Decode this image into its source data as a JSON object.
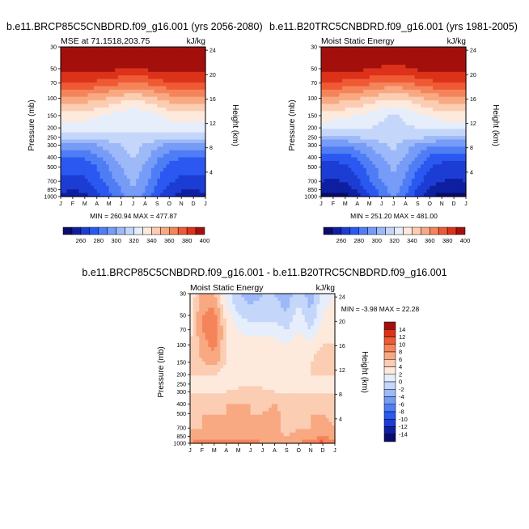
{
  "figure": {
    "colormap": {
      "levels": [
        -14,
        -12,
        -10,
        -8,
        -6,
        -4,
        -2,
        0,
        2,
        4,
        6,
        8,
        10,
        12,
        14
      ],
      "colors": [
        "#0b0b6b",
        "#0f1fa0",
        "#1c3dd4",
        "#2b58f0",
        "#4f7df5",
        "#779cf7",
        "#9db9f8",
        "#c4d6fa",
        "#e6eefb",
        "#fdeadd",
        "#fbcdb3",
        "#f8a982",
        "#f5845a",
        "#ef5a34",
        "#dc321a",
        "#a3100c"
      ]
    },
    "panels": [
      {
        "title": "b.e11.BRCP85C5CNBDRD.f09_g16.001 (yrs 2056-2080)",
        "left_label": "MSE at 71.1518,203.75",
        "units": "kJ/kg",
        "min_max": "MIN = 260.94 MAX = 477.87",
        "colorbar_labels": [
          "260",
          "280",
          "300",
          "320",
          "340",
          "360",
          "380",
          "400"
        ]
      },
      {
        "title": "b.e11.B20TRC5CNBDRD.f09_g16.001 (yrs 1981-2005)",
        "left_label": "Moist Static Energy",
        "units": "kJ/kg",
        "min_max": "MIN = 251.20 MAX = 481.00",
        "colorbar_labels": [
          "260",
          "280",
          "300",
          "320",
          "340",
          "360",
          "380",
          "400"
        ]
      },
      {
        "title": "b.e11.BRCP85C5CNBDRD.f09_g16.001 - b.e11.B20TRC5CNBDRD.f09_g16.001",
        "left_label": "Moist Static Energy",
        "units": "kJ/kg",
        "min_max": "MIN =  -3.98 MAX =  22.28",
        "colorbar_labels": [
          "14",
          "12",
          "10",
          "8",
          "6",
          "4",
          "2",
          "0",
          "-2",
          "-4",
          "-6",
          "-8",
          "-10",
          "-12",
          "-14"
        ]
      }
    ],
    "axes": {
      "ylabel": "Pressure (mb)",
      "ylabel_right": "Height (km)",
      "months": [
        "J",
        "F",
        "M",
        "A",
        "M",
        "J",
        "J",
        "A",
        "S",
        "O",
        "N",
        "D",
        "J"
      ],
      "pressure_ticks": [
        "30",
        "50",
        "70",
        "100",
        "150",
        "200",
        "250",
        "300",
        "400",
        "500",
        "700",
        "850",
        "1000"
      ],
      "height_ticks": [
        "24",
        "20",
        "16",
        "12",
        "8",
        "4"
      ]
    }
  },
  "chart_data": [
    {
      "type": "contour",
      "title": "b.e11.BRCP85C5CNBDRD.f09_g16.001 (yrs 2056-2080)",
      "subtitle": "MSE at 71.1518,203.75",
      "units": "kJ/kg",
      "xlabel": "",
      "ylabel": "Pressure (mb)",
      "ylabel_right": "Height (km)",
      "x": [
        "J",
        "F",
        "M",
        "A",
        "M",
        "J",
        "J",
        "A",
        "S",
        "O",
        "N",
        "D",
        "J"
      ],
      "pressure_levels": [
        30,
        50,
        70,
        100,
        150,
        200,
        250,
        300,
        400,
        500,
        700,
        850,
        1000
      ],
      "height_km": [
        24,
        20,
        16,
        12,
        8,
        4
      ],
      "contour_levels": [
        260,
        270,
        280,
        290,
        300,
        310,
        320,
        330,
        340,
        350,
        360,
        370,
        380,
        390,
        400
      ],
      "z": [
        [
          410,
          410,
          410,
          410,
          410,
          410,
          410,
          410,
          410,
          410,
          410,
          410,
          410
        ],
        [
          405,
          405,
          405,
          405,
          403,
          401,
          400,
          401,
          404,
          405,
          405,
          405,
          405
        ],
        [
          390,
          390,
          389,
          387,
          384,
          381,
          379,
          381,
          385,
          389,
          390,
          390,
          390
        ],
        [
          368,
          368,
          366,
          363,
          359,
          355,
          352,
          355,
          360,
          365,
          368,
          368,
          368
        ],
        [
          346,
          346,
          344,
          341,
          337,
          333,
          331,
          333,
          338,
          343,
          346,
          346,
          346
        ],
        [
          335,
          335,
          334,
          333,
          332,
          331,
          330,
          331,
          332,
          334,
          335,
          335,
          335
        ],
        [
          322,
          322,
          322,
          324,
          326,
          328,
          330,
          328,
          326,
          323,
          322,
          322,
          322
        ],
        [
          305,
          305,
          305,
          310,
          315,
          320,
          326,
          318,
          312,
          307,
          305,
          305,
          305
        ],
        [
          290,
          290,
          291,
          297,
          307,
          315,
          320,
          314,
          302,
          294,
          290,
          290,
          290
        ],
        [
          283,
          283,
          284,
          290,
          300,
          310,
          316,
          308,
          296,
          287,
          283,
          283,
          283
        ],
        [
          278,
          277,
          278,
          285,
          295,
          305,
          312,
          304,
          290,
          281,
          278,
          277,
          278
        ],
        [
          272,
          271,
          272,
          280,
          290,
          300,
          310,
          300,
          286,
          276,
          271,
          271,
          272
        ],
        [
          266,
          265,
          266,
          275,
          286,
          298,
          306,
          296,
          282,
          271,
          266,
          265,
          266
        ]
      ],
      "min": 260.94,
      "max": 477.87
    },
    {
      "type": "contour",
      "title": "b.e11.B20TRC5CNBDRD.f09_g16.001 (yrs 1981-2005)",
      "subtitle": "Moist Static Energy",
      "units": "kJ/kg",
      "xlabel": "",
      "ylabel": "Pressure (mb)",
      "ylabel_right": "Height (km)",
      "x": [
        "J",
        "F",
        "M",
        "A",
        "M",
        "J",
        "J",
        "A",
        "S",
        "O",
        "N",
        "D",
        "J"
      ],
      "pressure_levels": [
        30,
        50,
        70,
        100,
        150,
        200,
        250,
        300,
        400,
        500,
        700,
        850,
        1000
      ],
      "height_km": [
        24,
        20,
        16,
        12,
        8,
        4
      ],
      "contour_levels": [
        260,
        270,
        280,
        290,
        300,
        310,
        320,
        330,
        340,
        350,
        360,
        370,
        380,
        390,
        400
      ],
      "z": [
        [
          410,
          410,
          410,
          410,
          410,
          410,
          410,
          410,
          410,
          410,
          410,
          410,
          410
        ],
        [
          404,
          404,
          404,
          403,
          401,
          399,
          398,
          399,
          402,
          404,
          404,
          404,
          404
        ],
        [
          388,
          388,
          387,
          385,
          382,
          379,
          377,
          379,
          383,
          387,
          388,
          388,
          388
        ],
        [
          366,
          366,
          364,
          361,
          357,
          353,
          350,
          353,
          358,
          363,
          366,
          366,
          366
        ],
        [
          344,
          344,
          342,
          339,
          335,
          331,
          329,
          331,
          336,
          341,
          344,
          344,
          344
        ],
        [
          333,
          333,
          332,
          331,
          330,
          329,
          328,
          329,
          330,
          332,
          333,
          333,
          333
        ],
        [
          318,
          318,
          318,
          320,
          322,
          325,
          327,
          324,
          322,
          319,
          318,
          318,
          318
        ],
        [
          300,
          300,
          300,
          305,
          311,
          317,
          323,
          314,
          308,
          303,
          300,
          300,
          300
        ],
        [
          284,
          284,
          285,
          291,
          301,
          310,
          316,
          309,
          297,
          288,
          284,
          284,
          284
        ],
        [
          276,
          276,
          277,
          284,
          294,
          305,
          312,
          303,
          291,
          281,
          276,
          276,
          276
        ],
        [
          270,
          269,
          270,
          278,
          289,
          300,
          308,
          298,
          284,
          274,
          270,
          269,
          270
        ],
        [
          263,
          262,
          263,
          272,
          283,
          295,
          305,
          294,
          279,
          268,
          263,
          262,
          263
        ],
        [
          256,
          255,
          256,
          266,
          278,
          292,
          302,
          290,
          275,
          262,
          256,
          255,
          256
        ]
      ],
      "min": 251.2,
      "max": 481.0
    },
    {
      "type": "contour",
      "title": "b.e11.BRCP85C5CNBDRD.f09_g16.001 - b.e11.B20TRC5CNBDRD.f09_g16.001",
      "subtitle": "Moist Static Energy",
      "units": "kJ/kg",
      "xlabel": "",
      "ylabel": "Pressure (mb)",
      "ylabel_right": "Height (km)",
      "x": [
        "J",
        "F",
        "M",
        "A",
        "M",
        "J",
        "J",
        "A",
        "S",
        "O",
        "N",
        "D",
        "J"
      ],
      "pressure_levels": [
        30,
        50,
        70,
        100,
        150,
        200,
        250,
        300,
        400,
        500,
        700,
        850,
        1000
      ],
      "height_km": [
        24,
        20,
        16,
        12,
        8,
        4
      ],
      "contour_levels": [
        -14,
        -12,
        -10,
        -8,
        -6,
        -4,
        -2,
        0,
        2,
        4,
        6,
        8,
        10,
        12,
        14
      ],
      "z": [
        [
          2,
          7,
          6,
          1,
          -2,
          -3,
          -2,
          -2,
          -3,
          -1,
          -3,
          1,
          2
        ],
        [
          3,
          8,
          9,
          3,
          0,
          -1,
          -1,
          -1,
          -2,
          1,
          -2,
          2,
          3
        ],
        [
          3,
          8,
          10,
          4,
          2,
          1,
          1,
          1,
          0,
          2,
          0,
          3,
          3
        ],
        [
          4,
          7,
          9,
          4,
          3,
          3,
          3,
          3,
          2,
          3,
          3,
          4,
          4
        ],
        [
          4,
          6,
          7,
          4,
          4,
          4,
          3,
          3,
          2,
          3,
          4,
          5,
          4
        ],
        [
          4,
          4,
          4,
          3,
          3,
          3,
          2,
          2,
          2,
          3,
          4,
          4,
          4
        ],
        [
          3,
          3,
          3,
          3,
          3,
          3,
          3,
          3,
          3,
          3,
          3,
          3,
          3
        ],
        [
          4,
          4,
          4,
          4,
          5,
          5,
          5,
          4,
          4,
          4,
          4,
          4,
          4
        ],
        [
          5,
          5,
          5,
          6,
          6,
          6,
          5,
          6,
          5,
          4,
          5,
          5,
          5
        ],
        [
          5,
          6,
          6,
          6,
          6,
          6,
          6,
          7,
          5,
          5,
          6,
          6,
          5
        ],
        [
          6,
          6,
          6,
          6,
          6,
          6,
          6,
          7,
          5,
          6,
          6,
          7,
          6
        ],
        [
          7,
          7,
          7,
          7,
          7,
          7,
          7,
          7,
          6,
          7,
          7,
          8,
          7
        ],
        [
          8,
          9,
          9,
          9,
          9,
          9,
          8,
          8,
          7,
          8,
          9,
          11,
          8
        ]
      ],
      "min": -3.98,
      "max": 22.28
    }
  ]
}
